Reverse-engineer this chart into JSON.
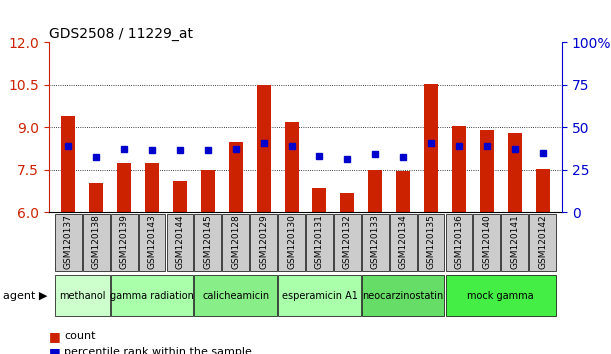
{
  "title": "GDS2508 / 11229_at",
  "samples": [
    "GSM120137",
    "GSM120138",
    "GSM120139",
    "GSM120143",
    "GSM120144",
    "GSM120145",
    "GSM120128",
    "GSM120129",
    "GSM120130",
    "GSM120131",
    "GSM120132",
    "GSM120133",
    "GSM120134",
    "GSM120135",
    "GSM120136",
    "GSM120140",
    "GSM120141",
    "GSM120142"
  ],
  "counts": [
    9.4,
    7.05,
    7.75,
    7.75,
    7.1,
    7.5,
    8.5,
    10.5,
    9.2,
    6.85,
    6.7,
    7.5,
    7.45,
    10.55,
    9.05,
    8.9,
    8.8,
    7.55
  ],
  "percentile_values": [
    8.35,
    7.95,
    8.25,
    8.2,
    8.2,
    8.2,
    8.25,
    8.45,
    8.35,
    8.0,
    7.9,
    8.05,
    7.95,
    8.45,
    8.35,
    8.35,
    8.25,
    8.1
  ],
  "agents": [
    {
      "label": "methanol",
      "start": 0,
      "end": 2,
      "color": "#ccffcc"
    },
    {
      "label": "gamma radiation",
      "start": 2,
      "end": 5,
      "color": "#aaffaa"
    },
    {
      "label": "calicheamicin",
      "start": 5,
      "end": 8,
      "color": "#88ee88"
    },
    {
      "label": "esperamicin A1",
      "start": 8,
      "end": 11,
      "color": "#aaffaa"
    },
    {
      "label": "neocarzinostatin",
      "start": 11,
      "end": 14,
      "color": "#66dd66"
    },
    {
      "label": "mock gamma",
      "start": 14,
      "end": 18,
      "color": "#44ee44"
    }
  ],
  "ylim_left": [
    6,
    12
  ],
  "ylim_right": [
    0,
    100
  ],
  "yticks_left": [
    6,
    7.5,
    9,
    10.5,
    12
  ],
  "yticks_right": [
    0,
    25,
    50,
    75,
    100
  ],
  "bar_color": "#cc2200",
  "dot_color": "#0000cc",
  "bar_width": 0.5,
  "background_color": "#ffffff",
  "legend_count_label": "count",
  "legend_pct_label": "percentile rank within the sample",
  "agent_label": "agent"
}
